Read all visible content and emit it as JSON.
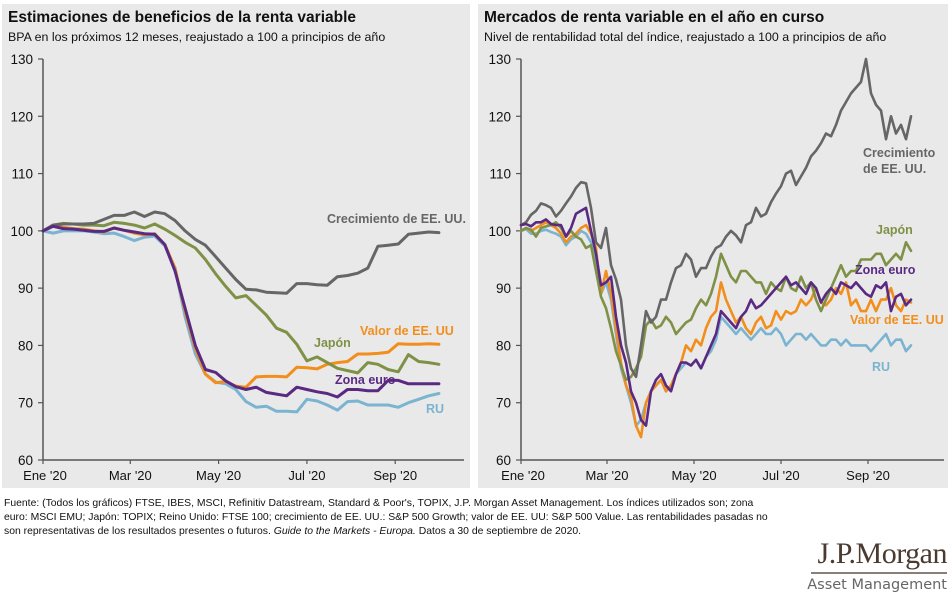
{
  "footnote": {
    "line1": "Fuente: (Todos los gráficos) FTSE, IBES, MSCI, Refinitiv Datastream, Standard & Poor's, TOPIX, J.P. Morgan Asset Management. Los índices utilizados son; zona",
    "line2": "euro: MSCI EMU; Japón: TOPIX; Reino Unido: FTSE 100; crecimiento de EE. UU.: S&P 500 Growth; valor de EE. UU: S&P 500 Value. Las rentabilidades pasadas no",
    "line3_a": "son representativas de los resultados presentes o futuros. ",
    "line3_italic": "Guide to the Markets - Europa.",
    "line3_b": " Datos a 30 de septiembre de 2020."
  },
  "logo": {
    "main": "J.P.Morgan",
    "sub": "Asset Management"
  },
  "colors": {
    "us_growth": "#666666",
    "japan": "#7f9146",
    "us_value": "#f28e1c",
    "eurozone": "#5a2a82",
    "uk": "#7ab4d1",
    "axis": "#555555"
  },
  "chart_data": [
    {
      "type": "line",
      "title": "Estimaciones de beneficios de la renta variable",
      "subtitle": "BPA en los próximos 12 meses, reajustado a 100 a principios de año",
      "xlabel": "",
      "ylabel": "",
      "ylim": [
        60,
        130
      ],
      "yticks": [
        "60",
        "70",
        "80",
        "90",
        "100",
        "110",
        "120",
        "130"
      ],
      "xticks": [
        "Ene '20",
        "Mar '20",
        "May '20",
        "Jul '20",
        "Sep '20"
      ],
      "x_unit": "weeks since Jan 1 2020",
      "x": [
        0,
        1,
        2,
        3,
        4,
        5,
        6,
        7,
        8,
        9,
        10,
        11,
        12,
        13,
        14,
        15,
        16,
        17,
        18,
        19,
        20,
        21,
        22,
        23,
        24,
        25,
        26,
        27,
        28,
        29,
        30,
        31,
        32,
        33,
        34,
        35,
        36,
        37,
        38,
        39
      ],
      "series": [
        {
          "name": "Crecimiento de EE. UU.",
          "key": "us_growth",
          "label_anchor": "upper-right",
          "values": [
            100,
            101,
            101.2,
            101.2,
            101.2,
            101.3,
            102,
            102.7,
            102.7,
            103.3,
            102.5,
            103.3,
            103,
            101.8,
            100,
            98.5,
            97.5,
            95.5,
            93.5,
            91.5,
            89.8,
            89.7,
            89.3,
            89.2,
            89.1,
            90.8,
            90.8,
            90.6,
            90.5,
            92,
            92.2,
            92.6,
            93.5,
            97.3,
            97.5,
            97.7,
            99.4,
            99.6,
            99.8,
            99.7
          ]
        },
        {
          "name": "Japón",
          "key": "japan",
          "label_anchor": "middle",
          "values": [
            100,
            101,
            101.3,
            101.2,
            101,
            101,
            100.9,
            101.5,
            101.3,
            101,
            100.5,
            101.2,
            100.3,
            99.2,
            98,
            97,
            95,
            92.5,
            90.3,
            88.3,
            88.7,
            87,
            85.3,
            83,
            82.3,
            80.2,
            77.3,
            78,
            77,
            76,
            75.6,
            75.2,
            77,
            76.7,
            75.8,
            75.4,
            78.4,
            77.2,
            77,
            76.7
          ]
        },
        {
          "name": "Valor de EE. UU",
          "key": "us_value",
          "label_anchor": "middle-right",
          "values": [
            100,
            100.8,
            100.6,
            100.4,
            100.3,
            100,
            99.8,
            100.5,
            100.1,
            99.6,
            99.3,
            99.5,
            97.6,
            93.5,
            86,
            79.5,
            75,
            73.5,
            73.7,
            72.9,
            72.7,
            74.5,
            74.6,
            74.6,
            74.5,
            76.2,
            76.1,
            75.9,
            76.7,
            77,
            77.2,
            78.5,
            78.5,
            78.6,
            78.8,
            80.3,
            80.2,
            80.2,
            80.3,
            80.2
          ]
        },
        {
          "name": "Zona euro",
          "key": "eurozone",
          "label_anchor": "lower-middle",
          "values": [
            100,
            100.8,
            100.4,
            100.3,
            100.1,
            99.9,
            99.9,
            100.5,
            100.1,
            99.8,
            99.5,
            99.4,
            97.6,
            93,
            86.5,
            80,
            75.8,
            75.3,
            73.8,
            72.8,
            72.3,
            72.7,
            71.8,
            71.5,
            71.2,
            72.7,
            72.3,
            71.9,
            71.6,
            71,
            72.3,
            72.3,
            72.1,
            72.1,
            73.9,
            73.9,
            73.3,
            73.3,
            73.3,
            73.3
          ]
        },
        {
          "name": "RU",
          "key": "uk",
          "label_anchor": "bottom-right",
          "values": [
            100,
            99.6,
            100,
            100,
            100,
            99.8,
            99.5,
            99.6,
            99,
            98.3,
            98.9,
            99.1,
            97.4,
            93.5,
            85,
            78.5,
            75,
            73.6,
            73.3,
            72.3,
            70.2,
            69.2,
            69.4,
            68.5,
            68.5,
            68.4,
            70.6,
            70.3,
            69.6,
            68.7,
            70.2,
            70.3,
            69.6,
            69.6,
            69.6,
            69.2,
            70,
            70.6,
            71.2,
            71.6
          ]
        }
      ]
    },
    {
      "type": "line",
      "title": "Mercados de renta variable en el año en curso",
      "subtitle": "Nivel de rentabilidad total del índice, reajustado a 100 a principios de año",
      "xlabel": "",
      "ylabel": "",
      "ylim": [
        60,
        130
      ],
      "yticks": [
        "60",
        "70",
        "80",
        "90",
        "100",
        "110",
        "120",
        "130"
      ],
      "xticks": [
        "Ene '20",
        "Mar '20",
        "May '20",
        "Jul '20",
        "Sep '20"
      ],
      "x_unit": "weeks since Jan 1 2020 (approx. half-week resolution)",
      "x": [
        0,
        0.5,
        1,
        1.5,
        2,
        2.5,
        3,
        3.5,
        4,
        4.5,
        5,
        5.5,
        6,
        6.5,
        7,
        7.5,
        8,
        8.5,
        9,
        9.5,
        10,
        10.5,
        11,
        11.5,
        12,
        12.5,
        13,
        13.5,
        14,
        14.5,
        15,
        15.5,
        16,
        16.5,
        17,
        17.5,
        18,
        18.5,
        19,
        19.5,
        20,
        20.5,
        21,
        21.5,
        22,
        22.5,
        23,
        23.5,
        24,
        24.5,
        25,
        25.5,
        26,
        26.5,
        27,
        27.5,
        28,
        28.5,
        29,
        29.5,
        30,
        30.5,
        31,
        31.5,
        32,
        32.5,
        33,
        33.5,
        34,
        34.5,
        35,
        35.5,
        36,
        36.5,
        37,
        37.5,
        38,
        38.5,
        39
      ],
      "series": [
        {
          "name": "Crecimiento de EE. UU.",
          "key": "us_growth",
          "label_anchor": "right-below-peak",
          "values": [
            101,
            101.5,
            102.8,
            103.5,
            104.8,
            104.5,
            104,
            102.5,
            103.5,
            104.8,
            106,
            107.5,
            108.5,
            108.3,
            104,
            98,
            97,
            100.5,
            94,
            91.5,
            88,
            80,
            76,
            74.5,
            80,
            86,
            84,
            85,
            88,
            88,
            91,
            93.5,
            94,
            96,
            95,
            92,
            93.5,
            93.5,
            95.5,
            97,
            97.5,
            99,
            100,
            99.2,
            98,
            101,
            101.5,
            104,
            102.5,
            103,
            105,
            106.5,
            107.8,
            110,
            110.5,
            108,
            109.5,
            111,
            113,
            114,
            115.3,
            117,
            116.5,
            118.5,
            121,
            122.5,
            124,
            125,
            126,
            130,
            124,
            122,
            121,
            116,
            120,
            117,
            118.5,
            116,
            120
          ]
        },
        {
          "name": "Japón",
          "key": "japan",
          "label_anchor": "above-end",
          "values": [
            100,
            100.5,
            100.2,
            99,
            100.5,
            100.8,
            101,
            101.5,
            100.5,
            99,
            100,
            99,
            98.5,
            97,
            97.5,
            93,
            88.5,
            86.5,
            83,
            79,
            76.5,
            74,
            74.5,
            76,
            78,
            83.5,
            84.5,
            83,
            83.5,
            85,
            84,
            82,
            83,
            84,
            84.5,
            86.5,
            88,
            87,
            89,
            92,
            96,
            94,
            92,
            91,
            93,
            93,
            92,
            91,
            91,
            89,
            91,
            90,
            89.5,
            92,
            90,
            89.5,
            92,
            90,
            91,
            88,
            86,
            88,
            90,
            92,
            94,
            92,
            93,
            93,
            95,
            95,
            95,
            96,
            96,
            94,
            95,
            96,
            95,
            98,
            96.5
          ]
        },
        {
          "name": "Zona euro",
          "key": "eurozone",
          "label_anchor": "right",
          "values": [
            101,
            101.2,
            100.8,
            101.5,
            101.5,
            102,
            101.2,
            101,
            101,
            99,
            100.5,
            103,
            103.5,
            104,
            100,
            96,
            90.5,
            91,
            92,
            85,
            80,
            77,
            72,
            70,
            67,
            66,
            72,
            74,
            75,
            73,
            72,
            75,
            77,
            77,
            76.5,
            77.5,
            76,
            78,
            80,
            82,
            86,
            85,
            84,
            83,
            85,
            86,
            88,
            86.5,
            87,
            88,
            89,
            90,
            91,
            92,
            90.5,
            91,
            90,
            89,
            91,
            90,
            87.5,
            89,
            90,
            89,
            91,
            90.5,
            90,
            91,
            90,
            89,
            88.5,
            90.5,
            90,
            91,
            86,
            88.5,
            89,
            87,
            88
          ]
        },
        {
          "name": "Valor de EE. UU",
          "key": "us_value",
          "label_anchor": "right-below",
          "values": [
            100,
            100.5,
            100,
            100.5,
            101,
            101.5,
            101,
            100.5,
            99.5,
            98,
            99,
            99.5,
            100.5,
            101,
            99.5,
            97,
            89,
            93,
            89,
            83,
            77,
            73,
            71,
            66,
            64,
            70,
            72,
            73,
            74,
            72,
            73,
            75,
            77,
            80,
            79,
            81,
            80,
            83,
            85,
            86,
            91,
            88,
            86,
            84,
            85,
            83,
            82,
            84,
            85,
            83,
            83.5,
            86,
            84.5,
            86,
            85.5,
            86,
            88,
            87,
            88,
            90,
            87.5,
            87,
            88,
            90,
            89,
            91,
            87,
            88,
            86,
            86,
            88,
            86,
            88,
            88,
            90,
            87,
            86,
            88,
            87.5
          ]
        },
        {
          "name": "RU",
          "key": "uk",
          "label_anchor": "bottom-right",
          "values": [
            100,
            100.3,
            99.5,
            99.5,
            100,
            100.2,
            99.8,
            99.5,
            99,
            97.5,
            98.5,
            99,
            100,
            99.5,
            98,
            95,
            89,
            91,
            88,
            82,
            76,
            73,
            70,
            66,
            67,
            70,
            72,
            73,
            74,
            72,
            73,
            75,
            76,
            77,
            76.5,
            77.5,
            76,
            78,
            79,
            81,
            85,
            84,
            83,
            82,
            83,
            82,
            81,
            82,
            83,
            82,
            82,
            83,
            82,
            80,
            81,
            82,
            82,
            81,
            82,
            81,
            80,
            80,
            81,
            81,
            80,
            81,
            80,
            80,
            80,
            80,
            79,
            80,
            81,
            82,
            80,
            81,
            81,
            79,
            80
          ]
        }
      ]
    }
  ]
}
